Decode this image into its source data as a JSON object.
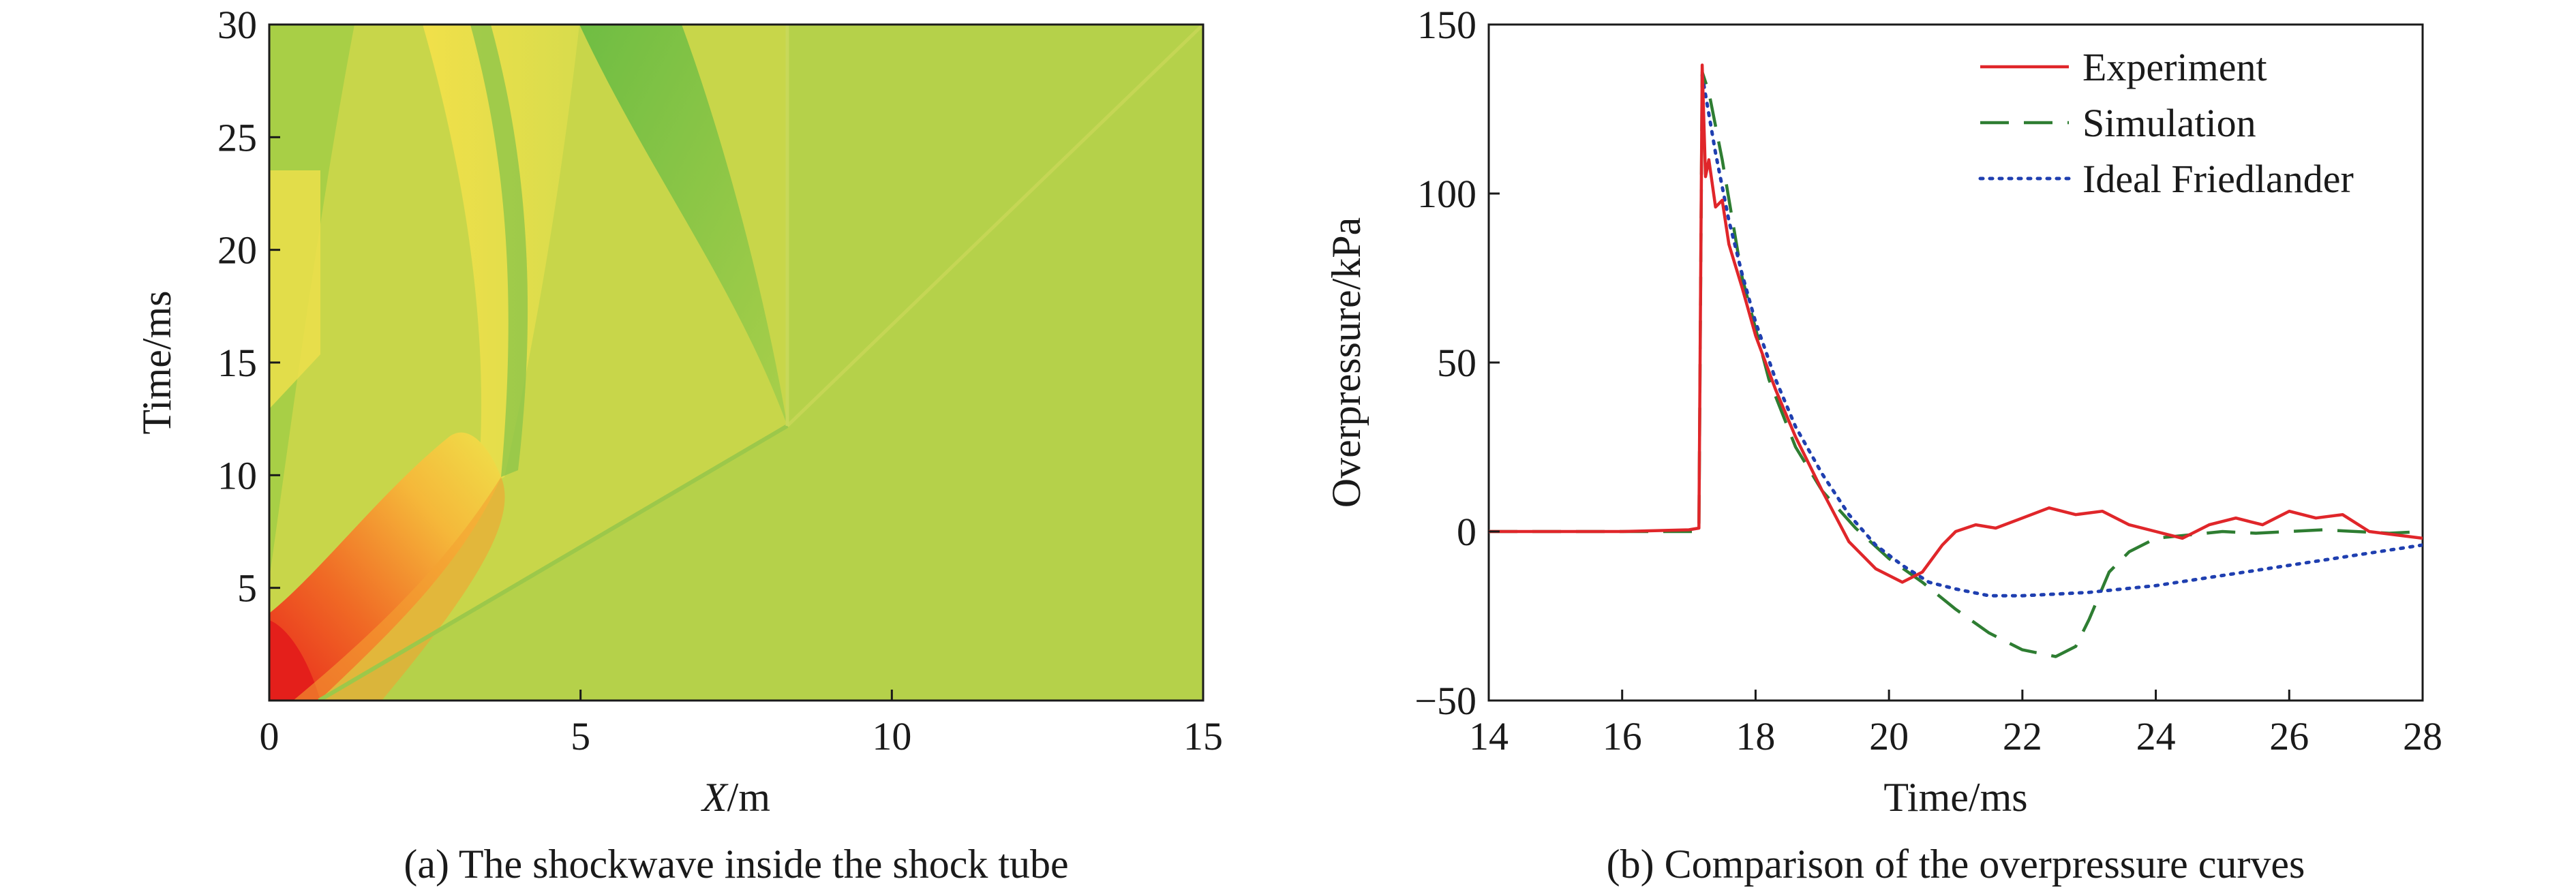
{
  "chart_data": [
    {
      "type": "heatmap",
      "caption": "(a) The shockwave inside the shock tube",
      "xlabel_italic": "X",
      "xlabel_unit": "/m",
      "ylabel": "Time/ms",
      "xlim": [
        0,
        15
      ],
      "ylim": [
        0,
        30
      ],
      "xticks": [
        "0",
        "5",
        "10",
        "15"
      ],
      "yticks": [
        "5",
        "10",
        "15",
        "20",
        "25",
        "30"
      ],
      "field_features": [
        {
          "label": "incident shock front",
          "from": [
            0.8,
            0
          ],
          "to": [
            8.2,
            13.2
          ]
        },
        {
          "label": "reflected shock",
          "from": [
            8.2,
            13.2
          ],
          "to": [
            15,
            30
          ]
        },
        {
          "label": "reflection point",
          "at": [
            8.2,
            13.2
          ]
        }
      ],
      "colors": {
        "background": "#b5d14a",
        "high": "#e8261c",
        "mid": "#f39a2a",
        "yellow": "#efe24a",
        "low": "#7cc043"
      }
    },
    {
      "type": "line",
      "caption": "(b) Comparison of the overpressure curves",
      "xlabel": "Time/ms",
      "ylabel": "Overpressure/kPa",
      "xlim": [
        14,
        28
      ],
      "ylim": [
        -50,
        150
      ],
      "xticks": [
        "14",
        "16",
        "18",
        "20",
        "22",
        "24",
        "26",
        "28"
      ],
      "yticks": [
        "−50",
        "0",
        "50",
        "100",
        "150"
      ],
      "legend_position": "top-right",
      "series": [
        {
          "name": "Experiment",
          "color": "#e0262a",
          "style": "solid",
          "x": [
            14,
            15,
            16,
            17,
            17.15,
            17.2,
            17.25,
            17.3,
            17.4,
            17.5,
            17.6,
            17.8,
            18.0,
            18.3,
            18.6,
            19.0,
            19.4,
            19.8,
            20.2,
            20.5,
            20.8,
            21.0,
            21.3,
            21.6,
            22.0,
            22.4,
            22.8,
            23.2,
            23.6,
            24.0,
            24.4,
            24.8,
            25.2,
            25.6,
            26.0,
            26.4,
            26.8,
            27.2,
            27.6,
            28.0
          ],
          "y": [
            0,
            0,
            0,
            0.5,
            1,
            138,
            105,
            110,
            96,
            98,
            85,
            72,
            58,
            42,
            28,
            12,
            -3,
            -11,
            -15,
            -12,
            -4,
            0,
            2,
            1,
            4,
            7,
            5,
            6,
            2,
            0,
            -2,
            2,
            4,
            2,
            6,
            4,
            5,
            0,
            -1,
            -2
          ]
        },
        {
          "name": "Simulation",
          "color": "#2e7d32",
          "style": "dashed",
          "x": [
            14,
            15,
            16,
            17,
            17.15,
            17.2,
            17.3,
            17.5,
            17.8,
            18.2,
            18.6,
            19.0,
            19.5,
            20.0,
            20.5,
            21.0,
            21.5,
            22.0,
            22.5,
            22.8,
            23.0,
            23.3,
            23.6,
            24.0,
            24.5,
            25.0,
            25.5,
            26.0,
            26.5,
            27.0,
            27.5,
            28.0
          ],
          "y": [
            0,
            0,
            0,
            0,
            0,
            136,
            130,
            110,
            75,
            45,
            25,
            12,
            1,
            -8,
            -15,
            -23,
            -30,
            -35,
            -37,
            -34,
            -26,
            -12,
            -6,
            -2,
            -1,
            0,
            -0.5,
            0,
            0.5,
            0,
            -0.5,
            0
          ]
        },
        {
          "name": "Ideal Friedlander",
          "color": "#1f3fb0",
          "style": "dotted",
          "x": [
            17.2,
            17.4,
            17.6,
            17.8,
            18.0,
            18.3,
            18.6,
            19.0,
            19.4,
            19.8,
            20.2,
            20.6,
            21.0,
            21.5,
            22.0,
            22.5,
            23.0,
            24.0,
            25.0,
            26.0,
            27.0,
            28.0
          ],
          "y": [
            135,
            112,
            92,
            76,
            62,
            45,
            31,
            17,
            5,
            -4,
            -10,
            -15,
            -17,
            -19,
            -19,
            -18.5,
            -18,
            -16,
            -13,
            -10,
            -7,
            -4
          ]
        }
      ]
    }
  ]
}
